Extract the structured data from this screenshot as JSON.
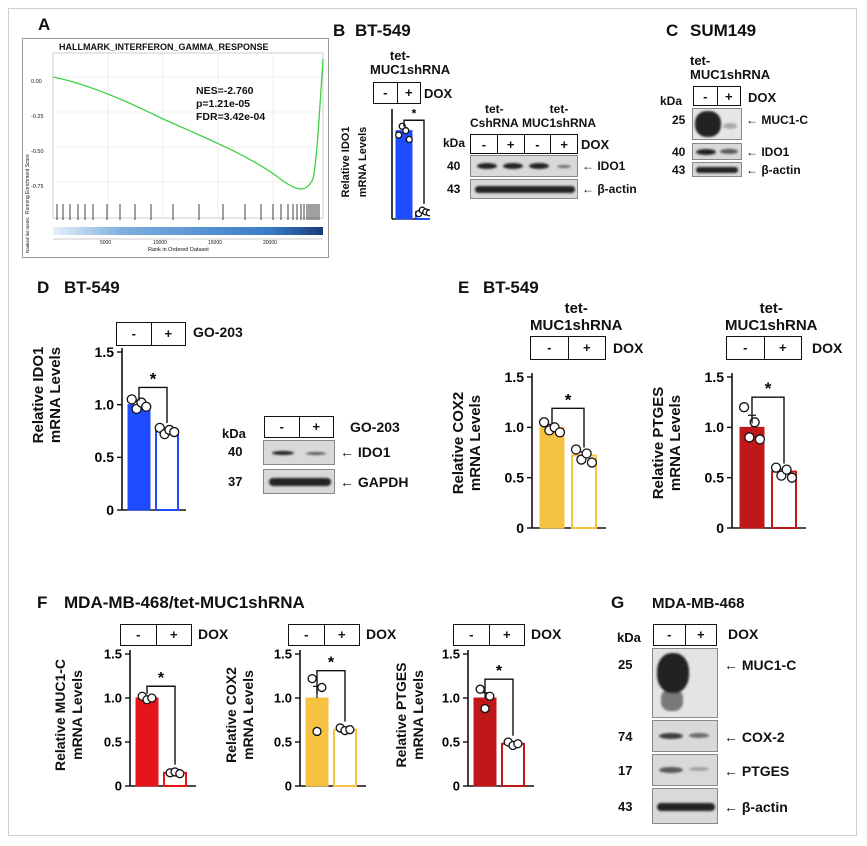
{
  "panelA": {
    "letter": "A",
    "title": "HALLMARK_INTERFERON_GAMMA_RESPONSE",
    "stats": [
      "NES=-2.760",
      "p=1.21e-05",
      "FDR=3.42e-04"
    ],
    "ylabel_top": "Running Enrichment Score",
    "ylabel_bottom": "Ranked list metric",
    "xlabel": "Rank in Ordered Dataset",
    "yticks": [
      "0.00",
      "-0.25",
      "-0.50",
      "-0.75"
    ],
    "xticks": [
      "5000",
      "10000",
      "15000",
      "20000"
    ]
  },
  "panelB": {
    "letter": "B",
    "title": "BT-549",
    "group": "tet-\nMUC1shRNA",
    "signs": [
      "-",
      "+"
    ],
    "treatment": "DOX",
    "ylabel": "Relative IDO1\nmRNA Levels",
    "star": "*",
    "blot_groups": [
      "tet-\nCshRNA",
      "tet-\nMUC1shRNA"
    ],
    "blot_signs": [
      "-",
      "+",
      "-",
      "+"
    ],
    "kda": "kDa",
    "markers": [
      "40",
      "43"
    ],
    "proteins": [
      "IDO1",
      "β-actin"
    ]
  },
  "panelC": {
    "letter": "C",
    "title": "SUM149",
    "group": "tet-\nMUC1shRNA",
    "signs": [
      "-",
      "+"
    ],
    "treatment": "DOX",
    "kda": "kDa",
    "markers": [
      "25",
      "40",
      "43"
    ],
    "proteins": [
      "MUC1-C",
      "IDO1",
      "β-actin"
    ]
  },
  "panelD": {
    "letter": "D",
    "title": "BT-549",
    "signs": [
      "-",
      "+"
    ],
    "treatment": "GO-203",
    "ylabel": "Relative IDO1\nmRNA Levels",
    "yticks": [
      "0",
      "0.5",
      "1.0",
      "1.5"
    ],
    "star": "*",
    "kda": "kDa",
    "markers": [
      "40",
      "37"
    ],
    "proteins": [
      "IDO1",
      "GAPDH"
    ]
  },
  "panelE": {
    "letter": "E",
    "title": "BT-549",
    "group": "tet-\nMUC1shRNA",
    "signs": [
      "-",
      "+"
    ],
    "treatment": "DOX",
    "ylabel_left": "Relative COX2\nmRNA Levels",
    "ylabel_right": "Relative PTGES\nmRNA Levels",
    "yticks": [
      "0",
      "0.5",
      "1.0",
      "1.5"
    ],
    "star": "*"
  },
  "panelF": {
    "letter": "F",
    "title": "MDA-MB-468/tet-MUC1shRNA",
    "signs": [
      "-",
      "+"
    ],
    "treatment": "DOX",
    "ylabels": [
      "Relative MUC1-C\nmRNA Levels",
      "Relative COX2\nmRNA Levels",
      "Relative PTGES\nmRNA Levels"
    ],
    "yticks": [
      "0",
      "0.5",
      "1.0",
      "1.5"
    ],
    "star": "*"
  },
  "panelG": {
    "letter": "G",
    "title": "MDA-MB-468",
    "signs": [
      "-",
      "+"
    ],
    "treatment": "DOX",
    "kda": "kDa",
    "markers": [
      "25",
      "74",
      "17",
      "43"
    ],
    "proteins": [
      "MUC1-C",
      "COX-2",
      "PTGES",
      "β-actin"
    ]
  },
  "chart_data": [
    {
      "type": "bar",
      "panel": "B",
      "categories": [
        "-",
        "+"
      ],
      "values": [
        1.0,
        0.08
      ],
      "ylim": [
        0,
        1.2
      ],
      "colors": [
        "#1f4bff",
        "#1f4bff"
      ],
      "points": [
        [
          0.95,
          1.05,
          1.0,
          0.9
        ],
        [
          0.06,
          0.1,
          0.08,
          0.07
        ]
      ]
    },
    {
      "type": "bar",
      "panel": "D",
      "categories": [
        "-",
        "+"
      ],
      "values": [
        1.0,
        0.75
      ],
      "ylim": [
        0,
        1.5
      ],
      "colors": [
        "#1f4bff",
        "#1f4bff"
      ],
      "points": [
        [
          1.05,
          0.96,
          1.02,
          0.98
        ],
        [
          0.78,
          0.72,
          0.76,
          0.74
        ]
      ]
    },
    {
      "type": "bar",
      "panel": "E-COX2",
      "categories": [
        "-",
        "+"
      ],
      "values": [
        1.0,
        0.72
      ],
      "ylim": [
        0,
        1.5
      ],
      "colors": [
        "#f5c242",
        "#f5c242"
      ],
      "points": [
        [
          1.05,
          0.97,
          1.0,
          0.95
        ],
        [
          0.78,
          0.68,
          0.74,
          0.65
        ]
      ]
    },
    {
      "type": "bar",
      "panel": "E-PTGES",
      "categories": [
        "-",
        "+"
      ],
      "values": [
        1.0,
        0.56
      ],
      "ylim": [
        0,
        1.5
      ],
      "colors": [
        "#c01818",
        "#c01818"
      ],
      "points": [
        [
          1.2,
          0.9,
          1.05,
          0.88
        ],
        [
          0.6,
          0.52,
          0.58,
          0.5
        ]
      ]
    },
    {
      "type": "bar",
      "panel": "F-MUC1-C",
      "categories": [
        "-",
        "+"
      ],
      "values": [
        1.0,
        0.15
      ],
      "ylim": [
        0,
        1.5
      ],
      "colors": [
        "#e8141c",
        "#e8141c"
      ],
      "points": [
        [
          1.02,
          0.98,
          1.0
        ],
        [
          0.15,
          0.16,
          0.14
        ]
      ]
    },
    {
      "type": "bar",
      "panel": "F-COX2",
      "categories": [
        "-",
        "+"
      ],
      "values": [
        1.0,
        0.64
      ],
      "ylim": [
        0,
        1.5
      ],
      "colors": [
        "#f5c242",
        "#f5c242"
      ],
      "points": [
        [
          1.22,
          0.62,
          1.12
        ],
        [
          0.66,
          0.63,
          0.64
        ]
      ]
    },
    {
      "type": "bar",
      "panel": "F-PTGES",
      "categories": [
        "-",
        "+"
      ],
      "values": [
        1.0,
        0.48
      ],
      "ylim": [
        0,
        1.5
      ],
      "colors": [
        "#c01818",
        "#c01818"
      ],
      "points": [
        [
          1.1,
          0.88,
          1.02
        ],
        [
          0.5,
          0.46,
          0.48
        ]
      ]
    }
  ]
}
